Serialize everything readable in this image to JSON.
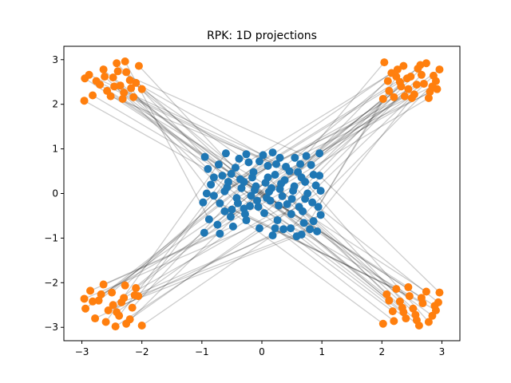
{
  "chart_data": {
    "type": "scatter",
    "title": "RPK: 1D projections",
    "xlabel": "",
    "ylabel": "",
    "xlim": [
      -3.3,
      3.3
    ],
    "ylim": [
      -3.3,
      3.3
    ],
    "xticks": [
      -3,
      -2,
      -1,
      0,
      1,
      2,
      3
    ],
    "yticks": [
      -3,
      -2,
      -1,
      0,
      1,
      2,
      3
    ],
    "xtick_labels": [
      "−3",
      "−2",
      "−1",
      "0",
      "1",
      "2",
      "3"
    ],
    "ytick_labels": [
      "−3",
      "−2",
      "−1",
      "0",
      "1",
      "2",
      "3"
    ],
    "grid": false,
    "legend": "none",
    "colors": {
      "source": "#1f77b4",
      "target": "#ff7f0e",
      "connector": "#000000"
    },
    "series": [
      {
        "role": "source",
        "points": [
          [
            -0.95,
            0.82
          ],
          [
            -0.72,
            0.65
          ],
          [
            -0.51,
            0.44
          ],
          [
            -0.3,
            0.26
          ],
          [
            -0.12,
            0.08
          ],
          [
            0.08,
            -0.1
          ],
          [
            0.28,
            -0.27
          ],
          [
            0.49,
            -0.46
          ],
          [
            0.7,
            -0.66
          ],
          [
            0.92,
            -0.85
          ],
          [
            -0.9,
            0.55
          ],
          [
            -0.66,
            0.4
          ],
          [
            -0.44,
            0.58
          ],
          [
            -0.22,
            0.7
          ],
          [
            0.02,
            0.86
          ],
          [
            0.24,
            0.66
          ],
          [
            0.46,
            0.5
          ],
          [
            0.66,
            0.36
          ],
          [
            0.9,
            0.18
          ],
          [
            0.74,
            0.84
          ],
          [
            -0.88,
            -0.58
          ],
          [
            -0.62,
            -0.4
          ],
          [
            -0.4,
            -0.22
          ],
          [
            -0.18,
            -0.05
          ],
          [
            0.16,
            0.12
          ],
          [
            0.38,
            0.3
          ],
          [
            0.6,
            0.48
          ],
          [
            0.82,
            0.64
          ],
          [
            0.96,
            0.9
          ],
          [
            0.55,
            0.8
          ],
          [
            -0.96,
            -0.88
          ],
          [
            -0.74,
            -0.7
          ],
          [
            -0.52,
            -0.52
          ],
          [
            -0.3,
            -0.34
          ],
          [
            -0.08,
            -0.16
          ],
          [
            0.12,
            0.04
          ],
          [
            0.32,
            0.22
          ],
          [
            0.52,
            0.06
          ],
          [
            0.72,
            -0.12
          ],
          [
            0.94,
            -0.3
          ],
          [
            -0.85,
            0.2
          ],
          [
            -0.62,
            0.05
          ],
          [
            -0.42,
            -0.1
          ],
          [
            -0.2,
            -0.28
          ],
          [
            0.04,
            -0.44
          ],
          [
            0.26,
            -0.6
          ],
          [
            0.48,
            -0.78
          ],
          [
            0.66,
            -0.92
          ],
          [
            0.86,
            -0.62
          ],
          [
            0.42,
            -0.24
          ],
          [
            -0.98,
            -0.2
          ],
          [
            -0.8,
            -0.05
          ],
          [
            -0.58,
            0.14
          ],
          [
            -0.36,
            0.32
          ],
          [
            -0.14,
            0.48
          ],
          [
            0.1,
            0.62
          ],
          [
            0.3,
            0.8
          ],
          [
            0.18,
            0.92
          ],
          [
            -0.04,
            0.72
          ],
          [
            -0.26,
            0.88
          ],
          [
            -0.7,
            -0.9
          ],
          [
            -0.48,
            -0.74
          ],
          [
            -0.26,
            -0.6
          ],
          [
            -0.04,
            -0.78
          ],
          [
            0.18,
            -0.94
          ],
          [
            0.36,
            -0.8
          ],
          [
            0.58,
            -0.96
          ],
          [
            0.8,
            -0.8
          ],
          [
            0.98,
            -0.48
          ],
          [
            0.62,
            -0.3
          ],
          [
            -0.6,
            0.9
          ],
          [
            -0.38,
            0.78
          ],
          [
            -0.16,
            0.36
          ],
          [
            0.06,
            0.24
          ],
          [
            0.22,
            0.42
          ],
          [
            0.4,
            0.6
          ],
          [
            0.64,
            0.66
          ],
          [
            0.86,
            0.42
          ],
          [
            0.98,
            0.06
          ],
          [
            0.76,
            0.0
          ],
          [
            -0.92,
            0.0
          ],
          [
            -0.7,
            -0.22
          ],
          [
            -0.5,
            -0.36
          ],
          [
            -0.28,
            -0.46
          ],
          [
            -0.06,
            -0.3
          ],
          [
            0.14,
            -0.16
          ],
          [
            0.34,
            -0.06
          ],
          [
            0.54,
            0.16
          ],
          [
            0.72,
            0.26
          ],
          [
            0.96,
            0.4
          ],
          [
            -0.8,
            0.36
          ],
          [
            -0.56,
            0.26
          ],
          [
            -0.34,
            0.12
          ],
          [
            -0.1,
            0.16
          ],
          [
            0.1,
            0.36
          ],
          [
            0.3,
            0.1
          ],
          [
            0.5,
            -0.12
          ],
          [
            0.68,
            -0.4
          ],
          [
            0.84,
            -0.2
          ],
          [
            0.22,
            -0.78
          ]
        ]
      },
      {
        "role": "target",
        "points": [
          [
            -2.95,
            2.58
          ],
          [
            -2.7,
            2.44
          ],
          [
            -2.48,
            2.6
          ],
          [
            -2.26,
            2.72
          ],
          [
            -2.05,
            2.86
          ],
          [
            -2.82,
            2.2
          ],
          [
            -2.58,
            2.3
          ],
          [
            -2.36,
            2.42
          ],
          [
            -2.14,
            2.16
          ],
          [
            -2.96,
            2.08
          ],
          [
            -2.64,
            2.78
          ],
          [
            -2.42,
            2.92
          ],
          [
            -2.2,
            2.54
          ],
          [
            -2.0,
            2.34
          ],
          [
            -2.88,
            2.66
          ],
          [
            -2.52,
            2.18
          ],
          [
            -2.3,
            2.26
          ],
          [
            -2.1,
            2.48
          ],
          [
            -2.76,
            2.52
          ],
          [
            -2.4,
            2.74
          ],
          [
            -2.28,
            2.96
          ],
          [
            -2.18,
            2.36
          ],
          [
            -2.62,
            2.62
          ],
          [
            -2.46,
            2.4
          ],
          [
            -2.32,
            2.12
          ],
          [
            2.04,
            2.94
          ],
          [
            2.26,
            2.78
          ],
          [
            2.48,
            2.62
          ],
          [
            2.7,
            2.46
          ],
          [
            2.92,
            2.34
          ],
          [
            2.1,
            2.52
          ],
          [
            2.32,
            2.4
          ],
          [
            2.54,
            2.22
          ],
          [
            2.78,
            2.14
          ],
          [
            2.96,
            2.78
          ],
          [
            2.2,
            2.16
          ],
          [
            2.42,
            2.58
          ],
          [
            2.64,
            2.88
          ],
          [
            2.86,
            2.64
          ],
          [
            2.12,
            2.3
          ],
          [
            2.36,
            2.86
          ],
          [
            2.58,
            2.44
          ],
          [
            2.8,
            2.28
          ],
          [
            2.02,
            2.12
          ],
          [
            2.44,
            2.34
          ],
          [
            2.66,
            2.66
          ],
          [
            2.9,
            2.52
          ],
          [
            2.24,
            2.62
          ],
          [
            2.5,
            2.14
          ],
          [
            2.74,
            2.92
          ],
          [
            2.16,
            2.7
          ],
          [
            2.38,
            2.18
          ],
          [
            2.6,
            2.8
          ],
          [
            2.84,
            2.4
          ],
          [
            2.3,
            2.5
          ],
          [
            -2.94,
            -2.58
          ],
          [
            -2.72,
            -2.4
          ],
          [
            -2.5,
            -2.22
          ],
          [
            -2.28,
            -2.06
          ],
          [
            -2.06,
            -2.3
          ],
          [
            -2.86,
            -2.18
          ],
          [
            -2.64,
            -2.04
          ],
          [
            -2.42,
            -2.66
          ],
          [
            -2.2,
            -2.82
          ],
          [
            -2.0,
            -2.96
          ],
          [
            -2.78,
            -2.8
          ],
          [
            -2.56,
            -2.62
          ],
          [
            -2.34,
            -2.44
          ],
          [
            -2.12,
            -2.28
          ],
          [
            -2.96,
            -2.36
          ],
          [
            -2.6,
            -2.88
          ],
          [
            -2.38,
            -2.74
          ],
          [
            -2.16,
            -2.56
          ],
          [
            -2.82,
            -2.42
          ],
          [
            -2.48,
            -2.5
          ],
          [
            -2.26,
            -2.92
          ],
          [
            -2.1,
            -2.12
          ],
          [
            -2.68,
            -2.26
          ],
          [
            -2.44,
            -2.98
          ],
          [
            -2.3,
            -2.34
          ],
          [
            2.02,
            -2.92
          ],
          [
            2.24,
            -2.14
          ],
          [
            2.46,
            -2.3
          ],
          [
            2.68,
            -2.46
          ],
          [
            2.9,
            -2.62
          ],
          [
            2.12,
            -2.4
          ],
          [
            2.34,
            -2.56
          ],
          [
            2.56,
            -2.72
          ],
          [
            2.78,
            -2.88
          ],
          [
            2.96,
            -2.22
          ],
          [
            2.18,
            -2.64
          ],
          [
            2.4,
            -2.8
          ],
          [
            2.62,
            -2.96
          ],
          [
            2.84,
            -2.74
          ],
          [
            2.08,
            -2.26
          ],
          [
            2.3,
            -2.42
          ],
          [
            2.52,
            -2.58
          ],
          [
            2.74,
            -2.2
          ],
          [
            2.94,
            -2.44
          ],
          [
            2.2,
            -2.86
          ],
          [
            2.44,
            -2.1
          ],
          [
            2.66,
            -2.34
          ],
          [
            2.88,
            -2.52
          ],
          [
            2.36,
            -2.66
          ],
          [
            2.58,
            -2.84
          ]
        ]
      }
    ]
  }
}
